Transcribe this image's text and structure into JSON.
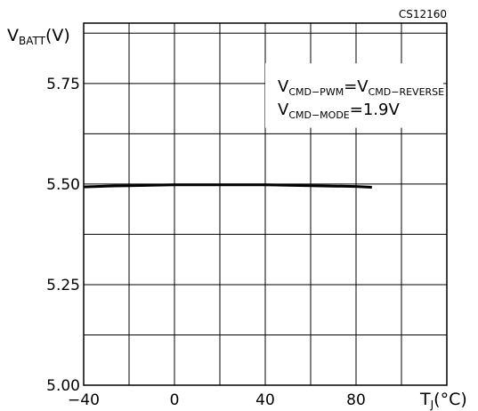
{
  "chart_data": {
    "type": "line",
    "reference_id": "CS12160",
    "ylabel": {
      "main": "V",
      "sub": "BATT",
      "unit": "(V)"
    },
    "xlabel": {
      "main": "T",
      "sub": "J",
      "unit": "(°C)"
    },
    "xlim": [
      -40,
      120
    ],
    "ylim": [
      5.0,
      5.9
    ],
    "x_tick_values": [
      -40,
      0,
      40,
      80
    ],
    "x_tick_labels": [
      "−40",
      "0",
      "40",
      "80"
    ],
    "y_tick_values": [
      5.0,
      5.25,
      5.5,
      5.75
    ],
    "y_tick_labels": [
      "5.00",
      "5.25",
      "5.50",
      "5.75"
    ],
    "x_grid": [
      -40,
      -20,
      0,
      20,
      40,
      60,
      80,
      100,
      120
    ],
    "y_grid": [
      5.0,
      5.125,
      5.25,
      5.375,
      5.5,
      5.625,
      5.75,
      5.875
    ],
    "grid": true,
    "annotations": [
      {
        "parts": [
          {
            "t": "V",
            "s": false
          },
          {
            "t": "CMD−PWM",
            "s": true
          },
          {
            "t": "=V",
            "s": false
          },
          {
            "t": "CMD−REVERSE",
            "s": true
          }
        ]
      },
      {
        "parts": [
          {
            "t": "V",
            "s": false
          },
          {
            "t": "CMD−MODE",
            "s": true
          },
          {
            "t": "=1.9V",
            "s": false
          }
        ]
      }
    ],
    "series": [
      {
        "x": [
          -40,
          -30,
          -20,
          -10,
          0,
          10,
          20,
          30,
          40,
          50,
          60,
          70,
          80,
          87
        ],
        "y": [
          5.493,
          5.495,
          5.496,
          5.497,
          5.498,
          5.498,
          5.498,
          5.498,
          5.498,
          5.497,
          5.496,
          5.495,
          5.494,
          5.492
        ]
      }
    ]
  }
}
